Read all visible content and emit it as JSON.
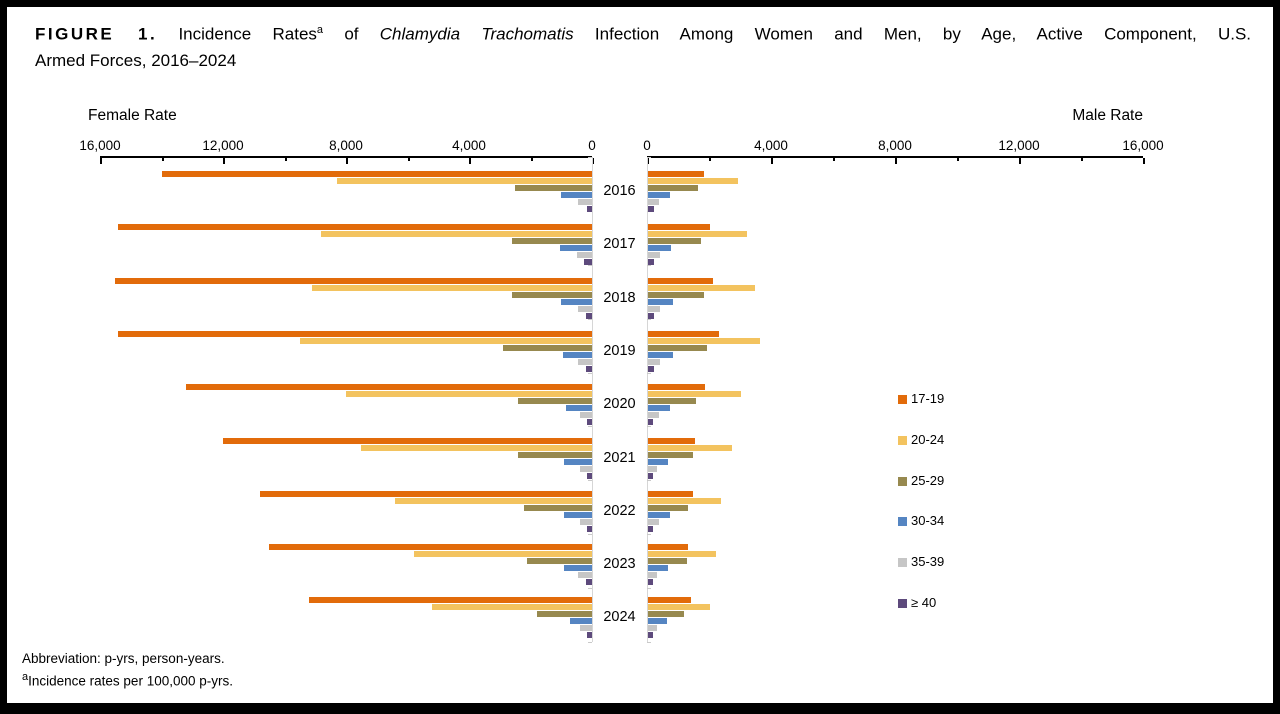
{
  "title": {
    "figure_label": "FIGURE 1.",
    "part_rates": " Incidence Rates",
    "superscript": "a",
    "part_of": " of ",
    "italic": "Chlamydia Trachomatis",
    "part_rest": " Infection Among Women and Men, by Age, Active Component, U.S.",
    "line2": "Armed Forces, 2016–2024"
  },
  "axes": {
    "female_label": "Female Rate",
    "male_label": "Male Rate",
    "female_ticks": [
      "16,000",
      "12,000",
      "8,000",
      "4,000",
      "0"
    ],
    "male_ticks": [
      "0",
      "4,000",
      "8,000",
      "12,000",
      "16,000"
    ]
  },
  "footnotes": {
    "line1": "Abbreviation: p-yrs, person-years.",
    "sup": "a",
    "line2": "Incidence rates per 100,000 p-yrs."
  },
  "chart_data": {
    "type": "bar",
    "orientation": "horizontal-pyramid",
    "title": "Incidence Rates of Chlamydia Trachomatis Infection Among Women and Men, by Age, Active Component, U.S. Armed Forces, 2016-2024",
    "xlabel_left": "Female Rate",
    "xlabel_right": "Male Rate",
    "xlim": [
      0,
      16000
    ],
    "grid": false,
    "legend_position": "right",
    "units": "incidence rate per 100,000 person-years",
    "categories": [
      "2016",
      "2017",
      "2018",
      "2019",
      "2020",
      "2021",
      "2022",
      "2023",
      "2024"
    ],
    "series": [
      {
        "name": "17-19",
        "color": "#E26B0A",
        "female": [
          14000,
          15400,
          15500,
          15400,
          13200,
          12000,
          10800,
          10500,
          9200
        ],
        "male": [
          1800,
          2000,
          2100,
          2300,
          1850,
          1500,
          1450,
          1300,
          1400
        ]
      },
      {
        "name": "20-24",
        "color": "#F3C35F",
        "female": [
          8300,
          8800,
          9100,
          9500,
          8000,
          7500,
          6400,
          5800,
          5200
        ],
        "male": [
          2900,
          3200,
          3450,
          3600,
          3000,
          2700,
          2350,
          2200,
          2000
        ]
      },
      {
        "name": "25-29",
        "color": "#97894F",
        "female": [
          2500,
          2600,
          2600,
          2900,
          2400,
          2400,
          2200,
          2100,
          1800
        ],
        "male": [
          1600,
          1700,
          1800,
          1900,
          1550,
          1450,
          1300,
          1250,
          1150
        ]
      },
      {
        "name": "30-34",
        "color": "#5585C2",
        "female": [
          1000,
          1050,
          1000,
          950,
          850,
          900,
          900,
          900,
          700
        ],
        "male": [
          700,
          750,
          800,
          800,
          700,
          650,
          700,
          650,
          600
        ]
      },
      {
        "name": "35-39",
        "color": "#C6C6C6",
        "female": [
          450,
          500,
          450,
          450,
          400,
          400,
          400,
          450,
          400
        ],
        "male": [
          350,
          400,
          400,
          400,
          350,
          300,
          350,
          300,
          300
        ]
      },
      {
        "name": "≥ 40",
        "color": "#5D4A7C",
        "female": [
          150,
          250,
          200,
          200,
          150,
          150,
          150,
          200,
          150
        ],
        "male": [
          200,
          200,
          200,
          200,
          150,
          150,
          150,
          150,
          150
        ]
      }
    ]
  }
}
